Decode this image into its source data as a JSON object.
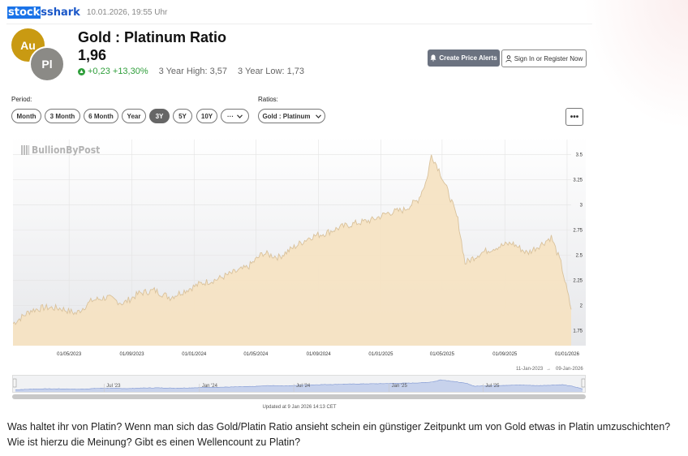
{
  "header": {
    "logo_left": "stock",
    "logo_right": "sshark",
    "timestamp": "10.01.2026, 19:55 Uhr"
  },
  "card": {
    "badge_au": "Au",
    "badge_pl": "Pl",
    "title": "Gold : Platinum Ratio",
    "value": "1,96",
    "change": "+0,23 +13,30%",
    "high": "3 Year High: 3,57",
    "low": "3 Year Low: 1,73",
    "alert_button": "Create Price Alerts",
    "signin_button": "Sign In or Register Now",
    "bell_icon": "bell-icon",
    "user_icon": "user-icon"
  },
  "controls": {
    "period_label": "Period:",
    "ratios_label": "Ratios:",
    "periods": [
      "Month",
      "3 Month",
      "6 Month",
      "Year",
      "3Y",
      "5Y",
      "10Y",
      "···"
    ],
    "active_period": "3Y",
    "ratio_selected": "Gold : Platinum",
    "more_label": "•••"
  },
  "chart_data": {
    "type": "area",
    "title": "",
    "watermark": "BullionByPost",
    "color": "#f5e3c3",
    "line_color": "#d9c29c",
    "x_ticks": [
      "01/05/2023",
      "01/09/2023",
      "01/01/2024",
      "01/05/2024",
      "01/09/2024",
      "01/01/2025",
      "01/05/2025",
      "01/09/2025",
      "01/01/2026"
    ],
    "y_ticks": [
      "3.5",
      "3.25",
      "3",
      "2.75",
      "2.5",
      "2.25",
      "2",
      "1.75"
    ],
    "ylim": [
      1.73,
      3.57
    ],
    "x": [
      "2023-01-11",
      "2023-02-15",
      "2023-03-15",
      "2023-04-15",
      "2023-05-15",
      "2023-06-15",
      "2023-07-15",
      "2023-08-15",
      "2023-09-15",
      "2023-10-15",
      "2023-11-15",
      "2023-12-15",
      "2024-01-15",
      "2024-02-15",
      "2024-03-15",
      "2024-04-15",
      "2024-05-15",
      "2024-06-15",
      "2024-07-15",
      "2024-08-15",
      "2024-09-15",
      "2024-10-15",
      "2024-11-15",
      "2024-12-15",
      "2025-01-15",
      "2025-02-15",
      "2025-03-15",
      "2025-04-01",
      "2025-04-10",
      "2025-04-25",
      "2025-05-15",
      "2025-06-01",
      "2025-06-15",
      "2025-07-15",
      "2025-08-15",
      "2025-09-15",
      "2025-10-15",
      "2025-11-15",
      "2025-12-01",
      "2025-12-20",
      "2026-01-09"
    ],
    "values": [
      1.82,
      1.95,
      1.98,
      1.97,
      1.92,
      2.05,
      2.08,
      2.02,
      2.12,
      2.15,
      2.08,
      2.15,
      2.22,
      2.26,
      2.32,
      2.38,
      2.52,
      2.48,
      2.58,
      2.68,
      2.72,
      2.78,
      2.82,
      2.85,
      2.92,
      2.95,
      3.05,
      3.25,
      3.5,
      3.35,
      3.1,
      2.85,
      2.42,
      2.52,
      2.58,
      2.62,
      2.52,
      2.62,
      2.68,
      2.42,
      1.96
    ],
    "range_from": "11-Jan-2023",
    "range_to": "09-Jan-2026",
    "navigator_labels": [
      "Jul '23",
      "Jan '24",
      "Jul '24",
      "Jan '25",
      "Jul '25"
    ],
    "updated": "Updated at 9 Jan 2026 14:13 CET"
  },
  "post": {
    "question_1": "Was haltet ihr von Platin? Wenn man sich das Gold/Platin Ratio ansieht schein ein günstiger Zeitpunkt um von Gold etwas in Platin umzuschichten?",
    "question_2": "Wie ist hierzu die Meinung? Gibt es einen Wellencount zu Platin?"
  }
}
